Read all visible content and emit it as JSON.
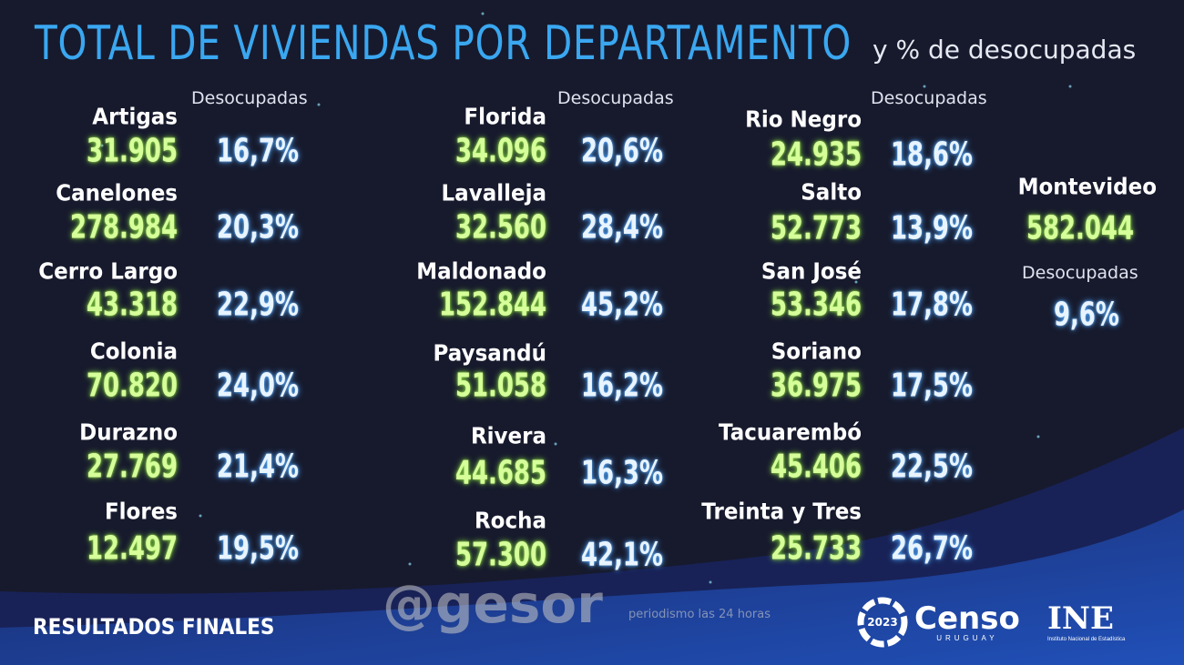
{
  "header": {
    "title": "TOTAL DE VIVIENDAS POR DEPARTAMENTO",
    "subtitle": "y % de desocupadas"
  },
  "column_header": "Desocupadas",
  "columns": [
    [
      {
        "name": "Artigas",
        "total": "31.905",
        "desocupadas": "16,7%"
      },
      {
        "name": "Canelones",
        "total": "278.984",
        "desocupadas": "20,3%"
      },
      {
        "name": "Cerro Largo",
        "total": "43.318",
        "desocupadas": "22,9%"
      },
      {
        "name": "Colonia",
        "total": "70.820",
        "desocupadas": "24,0%"
      },
      {
        "name": "Durazno",
        "total": "27.769",
        "desocupadas": "21,4%"
      },
      {
        "name": "Flores",
        "total": "12.497",
        "desocupadas": "19,5%"
      }
    ],
    [
      {
        "name": "Florida",
        "total": "34.096",
        "desocupadas": "20,6%"
      },
      {
        "name": "Lavalleja",
        "total": "32.560",
        "desocupadas": "28,4%"
      },
      {
        "name": "Maldonado",
        "total": "152.844",
        "desocupadas": "45,2%"
      },
      {
        "name": "Paysandú",
        "total": "51.058",
        "desocupadas": "16,2%"
      },
      {
        "name": "Rivera",
        "total": "44.685",
        "desocupadas": "16,3%"
      },
      {
        "name": "Rocha",
        "total": "57.300",
        "desocupadas": "42,1%"
      }
    ],
    [
      {
        "name": "Rio Negro",
        "total": "24.935",
        "desocupadas": "18,6%"
      },
      {
        "name": "Salto",
        "total": "52.773",
        "desocupadas": "13,9%"
      },
      {
        "name": "San José",
        "total": "53.346",
        "desocupadas": "17,8%"
      },
      {
        "name": "Soriano",
        "total": "36.975",
        "desocupadas": "17,5%"
      },
      {
        "name": "Tacuarembó",
        "total": "45.406",
        "desocupadas": "22,5%"
      },
      {
        "name": "Treinta y Tres",
        "total": "25.733",
        "desocupadas": "26,7%"
      }
    ]
  ],
  "montevideo": {
    "name": "Montevideo",
    "total": "582.044",
    "label": "Desocupadas",
    "desocupadas": "9,6%"
  },
  "footer": {
    "label": "RESULTADOS FINALES"
  },
  "logos": {
    "censo": "Censo",
    "censo_year": "2023",
    "censo_country": "URUGUAY",
    "ine": "INE",
    "ine_sub": "Instituto Nacional de Estadística"
  },
  "watermark": {
    "text": "@gesor",
    "tagline": "periodismo las 24 horas"
  },
  "colors": {
    "title": "#3aa7f0",
    "totals": "#d6ff9a",
    "percentages": "#e8f4ff",
    "background": "#171a2d",
    "wave": "#1d3f9a"
  }
}
